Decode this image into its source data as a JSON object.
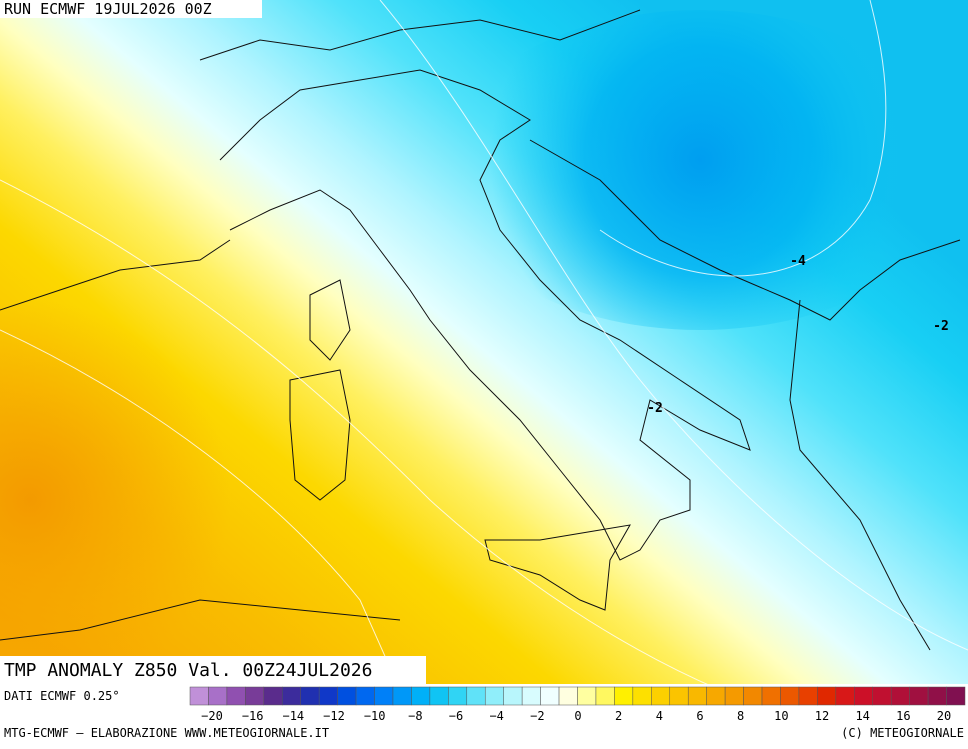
{
  "header": {
    "run": "RUN ECMWF 19JUL2026 00Z"
  },
  "map": {
    "title": "TMP ANOMALY Z850 Val. 00Z24JUL2026",
    "contour_labels": [
      {
        "text": "-4"
      },
      {
        "text": "-2"
      },
      {
        "text": "-2"
      }
    ]
  },
  "legend": {
    "source": "DATI ECMWF 0.25°",
    "labels": [
      "−20",
      "−16",
      "−14",
      "−12",
      "−10",
      "−8",
      "−6",
      "−4",
      "−2",
      "0",
      "2",
      "4",
      "6",
      "8",
      "10",
      "12",
      "14",
      "16",
      "20"
    ]
  },
  "footer": {
    "left": "MTG-ECMWF – ELABORAZIONE WWW.METEOGIORNALE.IT",
    "right": "(C) METEOGIORNALE"
  }
}
